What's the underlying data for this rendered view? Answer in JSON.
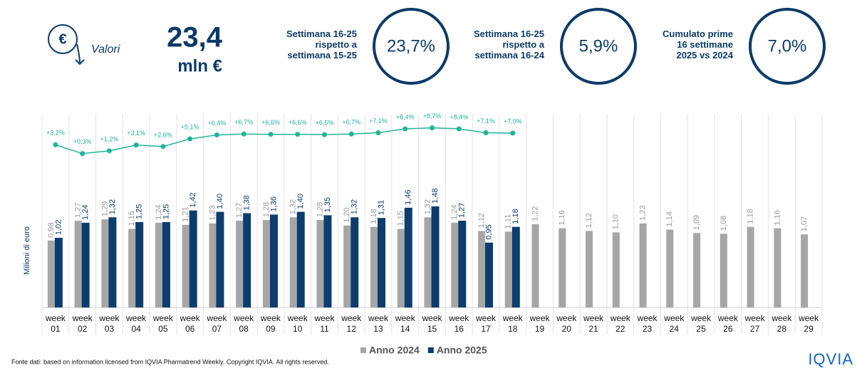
{
  "header": {
    "icon_symbol": "€",
    "caption": "Valori",
    "total": "23,4",
    "unit": "mln €"
  },
  "kpis": [
    {
      "label": [
        "Settimana 16-25",
        "rispetto a",
        "settimana 15-25"
      ],
      "value": "23,7%"
    },
    {
      "label": [
        "Settimana 16-25",
        "rispetto a",
        "settimana 16-24"
      ],
      "value": "5,9%"
    },
    {
      "label": [
        "Cumulato prime",
        "16 settimane",
        "2025 vs 2024"
      ],
      "value": "7,0%"
    }
  ],
  "chart_data": {
    "type": "bar",
    "y_label": "Milioni di euro",
    "categories": [
      "week 01",
      "week 02",
      "week 03",
      "week 04",
      "week 05",
      "week 06",
      "week 07",
      "week 08",
      "week 09",
      "week 10",
      "week 11",
      "week 12",
      "week 13",
      "week 14",
      "week 15",
      "week 16",
      "week 17",
      "week 18",
      "week 19",
      "week 20",
      "week 21",
      "week 22",
      "week 23",
      "week 24",
      "week 25",
      "week 26",
      "week 27",
      "week 28",
      "week 29"
    ],
    "ylim": [
      0,
      3
    ],
    "y2lim": [
      -50,
      17
    ],
    "legend": "bottom",
    "series": [
      {
        "name": "Anno 2024",
        "color": "#a6a6a6",
        "values": [
          0.98,
          1.27,
          1.29,
          1.15,
          1.24,
          1.21,
          1.23,
          1.27,
          1.28,
          1.32,
          1.28,
          1.2,
          1.18,
          1.15,
          1.32,
          1.24,
          1.12,
          1.11,
          1.22,
          1.16,
          1.12,
          1.1,
          1.23,
          1.14,
          1.09,
          1.08,
          1.18,
          1.16,
          1.07
        ],
        "value_labels": [
          "0,98",
          "1,27",
          "1,29",
          "1,15",
          "1,24",
          "1,21",
          "1,23",
          "1,27",
          "1,28",
          "1,32",
          "1,28",
          "1,20",
          "1,18",
          "1,15",
          "1,32",
          "1,24",
          "1,12",
          "1,11",
          "1,22",
          "1,16",
          "1,12",
          "1,10",
          "1,23",
          "1,14",
          "1,09",
          "1,08",
          "1,18",
          "1,16",
          "1,07"
        ]
      },
      {
        "name": "Anno 2025",
        "color": "#0d3c6e",
        "values": [
          1.02,
          1.24,
          1.32,
          1.25,
          1.25,
          1.42,
          1.4,
          1.38,
          1.36,
          1.4,
          1.35,
          1.32,
          1.31,
          1.46,
          1.48,
          1.27,
          0.95,
          1.18,
          null,
          null,
          null,
          null,
          null,
          null,
          null,
          null,
          null,
          null,
          null
        ],
        "value_labels": [
          "1,02",
          "1,24",
          "1,32",
          "1,25",
          "1,25",
          "1,42",
          "1,40",
          "1,38",
          "1,36",
          "1,40",
          "1,35",
          "1,32",
          "1,31",
          "1,46",
          "1,48",
          "1,27",
          "0,95",
          "1,18",
          null,
          null,
          null,
          null,
          null,
          null,
          null,
          null,
          null,
          null,
          null
        ]
      },
      {
        "type": "line",
        "axis": "y2",
        "color": "#1fb39a",
        "values": [
          3.2,
          0.3,
          1.2,
          3.1,
          2.6,
          5.1,
          6.4,
          6.7,
          6.6,
          6.6,
          6.5,
          6.7,
          7.1,
          8.4,
          8.7,
          8.4,
          7.1,
          7.0,
          null,
          null,
          null,
          null,
          null,
          null,
          null,
          null,
          null,
          null,
          null
        ],
        "value_labels": [
          "+3,2%",
          "+0,3%",
          "+1,2%",
          "+3,1%",
          "+2,6%",
          "+5,1%",
          "+6,4%",
          "+6,7%",
          "+6,6%",
          "+6,6%",
          "+6,5%",
          "+6,7%",
          "+7,1%",
          "+8,4%",
          "+8,7%",
          "+8,4%",
          "+7,1%",
          "+7,0%",
          null,
          null,
          null,
          null,
          null,
          null,
          null,
          null,
          null,
          null,
          null
        ]
      }
    ]
  },
  "footer": {
    "source": "Fonte dati: based on information licensed from IQVIA Pharmatrend Weekly. Copyright IQVIA. All rights reserved.",
    "logo": "IQVIA"
  }
}
